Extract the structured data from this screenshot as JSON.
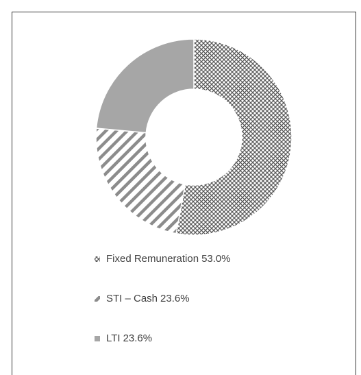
{
  "chart_data": {
    "type": "donut",
    "categories": [
      "Fixed Remuneration",
      "STI – Cash",
      "LTI"
    ],
    "values": [
      53.0,
      23.6,
      23.6
    ],
    "value_labels": [
      "53.0%",
      "23.6%",
      "23.6%"
    ],
    "colors": [
      "#595959",
      "#8c8c8c",
      "#a6a6a6"
    ],
    "patterns": [
      "crosshatch",
      "diagonal",
      "solid"
    ],
    "legend": "bottom"
  }
}
